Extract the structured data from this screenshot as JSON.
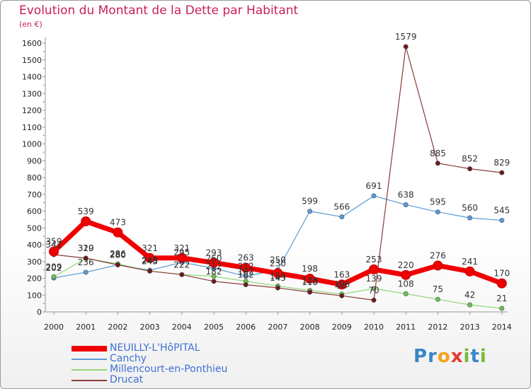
{
  "header": {
    "title": "Evolution du Montant de la Dette par Habitant",
    "subtitle": "(en €)"
  },
  "logo": {
    "letters": [
      {
        "ch": "P",
        "color": "#3a86c8"
      },
      {
        "ch": "r",
        "color": "#3a86c8"
      },
      {
        "ch": "o",
        "color": "#f4a11e"
      },
      {
        "ch": "x",
        "color": "#e23c2c"
      },
      {
        "ch": "i",
        "color": "#7cb93a"
      },
      {
        "ch": "t",
        "color": "#3a86c8"
      },
      {
        "ch": "i",
        "color": "#7cb93a"
      }
    ]
  },
  "chart_data": {
    "type": "line",
    "title": "Evolution du Montant de la Dette par Habitant",
    "ylabel": "(en €)",
    "xlabel": "",
    "x": [
      "2000",
      "2001",
      "2002",
      "2003",
      "2004",
      "2005",
      "2006",
      "2007",
      "2008",
      "2009",
      "2010",
      "2011",
      "2012",
      "2013",
      "2014"
    ],
    "ylim": [
      0,
      1600
    ],
    "yticks": [
      0,
      100,
      200,
      300,
      400,
      500,
      600,
      700,
      800,
      900,
      1000,
      1100,
      1200,
      1300,
      1400,
      1500,
      1600
    ],
    "grid": false,
    "legend_position": "bottom-left",
    "series": [
      {
        "name": "Canchy",
        "color": "#5b9bd5",
        "width": 1.2,
        "marker_color": "#5b9bd5",
        "show_labels": true,
        "values": [
          202,
          236,
          280,
          248,
          295,
          260,
          212,
          250,
          599,
          566,
          691,
          638,
          595,
          560,
          545
        ]
      },
      {
        "name": "Millencourt-en-Ponthieu",
        "color": "#90d77a",
        "width": 1.2,
        "marker_color": "#6cc050",
        "show_labels": true,
        "values": [
          209,
          319,
          286,
          243,
          222,
          212,
          182,
          154,
          128,
          106,
          139,
          108,
          75,
          42,
          21
        ]
      },
      {
        "name": "Drucat",
        "color": "#8b3a3a",
        "width": 1.2,
        "marker_color": "#6b1a1a",
        "show_labels": true,
        "values": [
          341,
          320,
          280,
          243,
          222,
          182,
          162,
          143,
          118,
          96,
          70,
          1579,
          885,
          852,
          829
        ]
      },
      {
        "name": "NEUILLY-L'HôPITAL",
        "color": "#f00000",
        "width": 7,
        "marker_color": "#ee0000",
        "show_labels": true,
        "values": [
          359,
          539,
          473,
          321,
          321,
          293,
          263,
          230,
          198,
          163,
          253,
          220,
          276,
          241,
          170
        ]
      }
    ],
    "labels": {
      "NEUILLY-L'HôPITAL": [
        "359",
        "539",
        "473",
        "321",
        "321",
        "293",
        "263",
        "230",
        "198",
        "163",
        "253",
        "220",
        "276",
        "241",
        "170"
      ],
      "Canchy": [
        "202",
        "236",
        "280",
        "248",
        "295",
        "260",
        "212",
        "250",
        "599",
        "566",
        "691",
        "638",
        "595",
        "560",
        "545"
      ],
      "Millencourt-en-Ponthieu": [
        "209",
        "319",
        "286",
        "243",
        "222",
        "212",
        "182",
        "154",
        "128",
        "106",
        "139",
        "108",
        "75",
        "42",
        "21"
      ],
      "Drucat": [
        "341",
        "320",
        "280",
        "243",
        "222",
        "182",
        "162",
        "143",
        "118",
        "96",
        "70",
        "1579",
        "885",
        "852",
        "829"
      ]
    },
    "legend_order": [
      "NEUILLY-L'HôPITAL",
      "Canchy",
      "Millencourt-en-Ponthieu",
      "Drucat"
    ]
  }
}
